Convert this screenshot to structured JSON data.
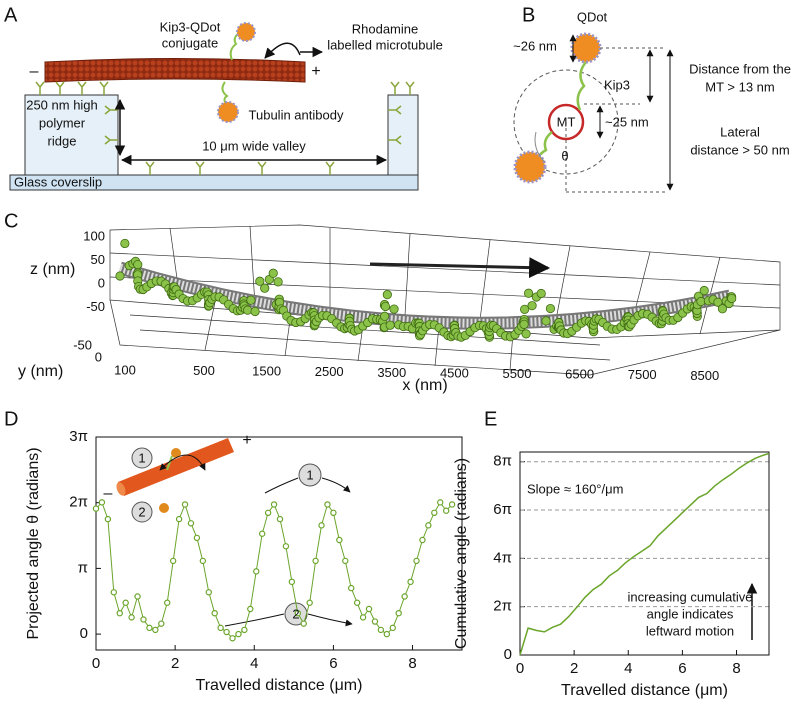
{
  "panel_labels": [
    "A",
    "B",
    "C",
    "D",
    "E"
  ],
  "panel_a": {
    "qdot_label": [
      "Kip3-QDot",
      "conjugate"
    ],
    "mt_label": [
      "Rhodamine",
      "labelled microtubule"
    ],
    "minus": "–",
    "plus": "+",
    "ridge_label": [
      "250 nm high",
      "polymer",
      "ridge"
    ],
    "antibody_label": "Tubulin antibody",
    "valley_label": "10 μm wide valley",
    "glass_label": "Glass coverslip"
  },
  "panel_b": {
    "qdot": "QDot",
    "qdot_size": "~26 nm",
    "distance": [
      "Distance from the",
      "MT > 13 nm"
    ],
    "kip3": "Kip3",
    "mt": "MT",
    "mt_size": "~25 nm",
    "lateral": [
      "Lateral",
      "distance > 50 nm"
    ],
    "theta": "θ"
  },
  "panel_c": {
    "z_label": "z (nm)",
    "z_ticks": [
      "100",
      "50",
      "0",
      "-50"
    ],
    "y_label": "y (nm)",
    "y_ticks": [
      "-50",
      "0"
    ],
    "x_label": "x (nm)",
    "x_ticks": [
      "100",
      "500",
      "1500",
      "2500",
      "3500",
      "4500",
      "5500",
      "6500",
      "7500",
      "8500"
    ]
  },
  "chart_data": [
    {
      "type": "line",
      "markers": true,
      "color": "#6aa52a",
      "xlabel": "Travelled distance (μm)",
      "ylabel": "Projected angle θ (radians)",
      "x": [
        0,
        0.15,
        0.3,
        0.45,
        0.6,
        0.75,
        0.9,
        1.05,
        1.2,
        1.35,
        1.5,
        1.65,
        1.8,
        1.95,
        2.1,
        2.25,
        2.4,
        2.55,
        2.7,
        2.85,
        3.0,
        3.15,
        3.3,
        3.45,
        3.6,
        3.75,
        3.9,
        4.05,
        4.2,
        4.35,
        4.5,
        4.65,
        4.8,
        4.95,
        5.1,
        5.25,
        5.4,
        5.55,
        5.7,
        5.85,
        6.0,
        6.15,
        6.3,
        6.45,
        6.6,
        6.75,
        6.9,
        7.05,
        7.2,
        7.35,
        7.5,
        7.65,
        7.8,
        7.95,
        8.1,
        8.25,
        8.4,
        8.55,
        8.7,
        8.85,
        9.0
      ],
      "values": [
        6.0,
        6.3,
        5.5,
        2.0,
        1.0,
        1.5,
        0.8,
        1.8,
        0.7,
        0.3,
        0.2,
        0.5,
        1.5,
        3.5,
        5.5,
        6.2,
        5.3,
        4.6,
        3.5,
        2.0,
        1.0,
        0.3,
        0.1,
        -0.2,
        0.0,
        0.2,
        1.2,
        3.0,
        4.8,
        5.8,
        6.2,
        5.5,
        4.2,
        2.5,
        1.0,
        0.5,
        1.5,
        3.5,
        5.2,
        6.2,
        5.8,
        4.5,
        3.5,
        2.2,
        1.5,
        0.8,
        1.2,
        0.6,
        0.2,
        0.0,
        0.3,
        1.0,
        1.8,
        2.5,
        3.5,
        4.5,
        5.2,
        5.8,
        6.3,
        5.9,
        6.2
      ],
      "xlim": [
        0,
        9.25
      ],
      "ylim": [
        -0.76,
        9.4248
      ],
      "xticks": [
        0,
        2,
        4,
        6,
        8
      ],
      "yticks": [
        0,
        {
          "value": 3.1416,
          "label": "π"
        },
        {
          "value": 6.2832,
          "label": "2π"
        },
        {
          "value": 9.4248,
          "label": "3π"
        }
      ],
      "grid": false,
      "annotations": [
        "+",
        "–",
        "1",
        "2",
        "1",
        "2"
      ]
    },
    {
      "type": "line",
      "markers": false,
      "color": "#6aa52a",
      "xlabel": "Travelled distance (μm)",
      "ylabel": "Cumulative angle (radians)",
      "x": [
        0,
        0.3,
        0.6,
        0.9,
        1.2,
        1.5,
        1.8,
        2.1,
        2.4,
        2.7,
        3.0,
        3.3,
        3.6,
        3.9,
        4.2,
        4.5,
        4.8,
        5.1,
        5.4,
        5.7,
        6.0,
        6.3,
        6.6,
        6.9,
        7.2,
        7.5,
        7.8,
        8.1,
        8.4,
        8.7,
        9.0,
        9.2
      ],
      "values": [
        0,
        3.5,
        3.2,
        3.0,
        3.6,
        4.0,
        5.0,
        6.2,
        7.5,
        8.5,
        9.2,
        10.3,
        11.0,
        12.0,
        12.8,
        13.5,
        14.2,
        15.5,
        16.5,
        17.5,
        18.5,
        19.5,
        20.5,
        21.0,
        22.0,
        22.8,
        23.5,
        24.3,
        25.0,
        25.6,
        26.0,
        26.2
      ],
      "xlim": [
        0,
        9.2
      ],
      "ylim": [
        0,
        26.4
      ],
      "xticks": [
        0,
        2,
        4,
        6,
        8
      ],
      "yticks": [
        0,
        {
          "value": 6.2832,
          "label": "2π"
        },
        {
          "value": 12.5664,
          "label": "4π"
        },
        {
          "value": 18.8496,
          "label": "6π"
        },
        {
          "value": 25.1327,
          "label": "8π"
        }
      ],
      "grid": true,
      "annotations": [
        "Slope ≈ 160°/μm",
        "increasing cumulative",
        "angle indicates",
        "leftward motion"
      ]
    }
  ]
}
